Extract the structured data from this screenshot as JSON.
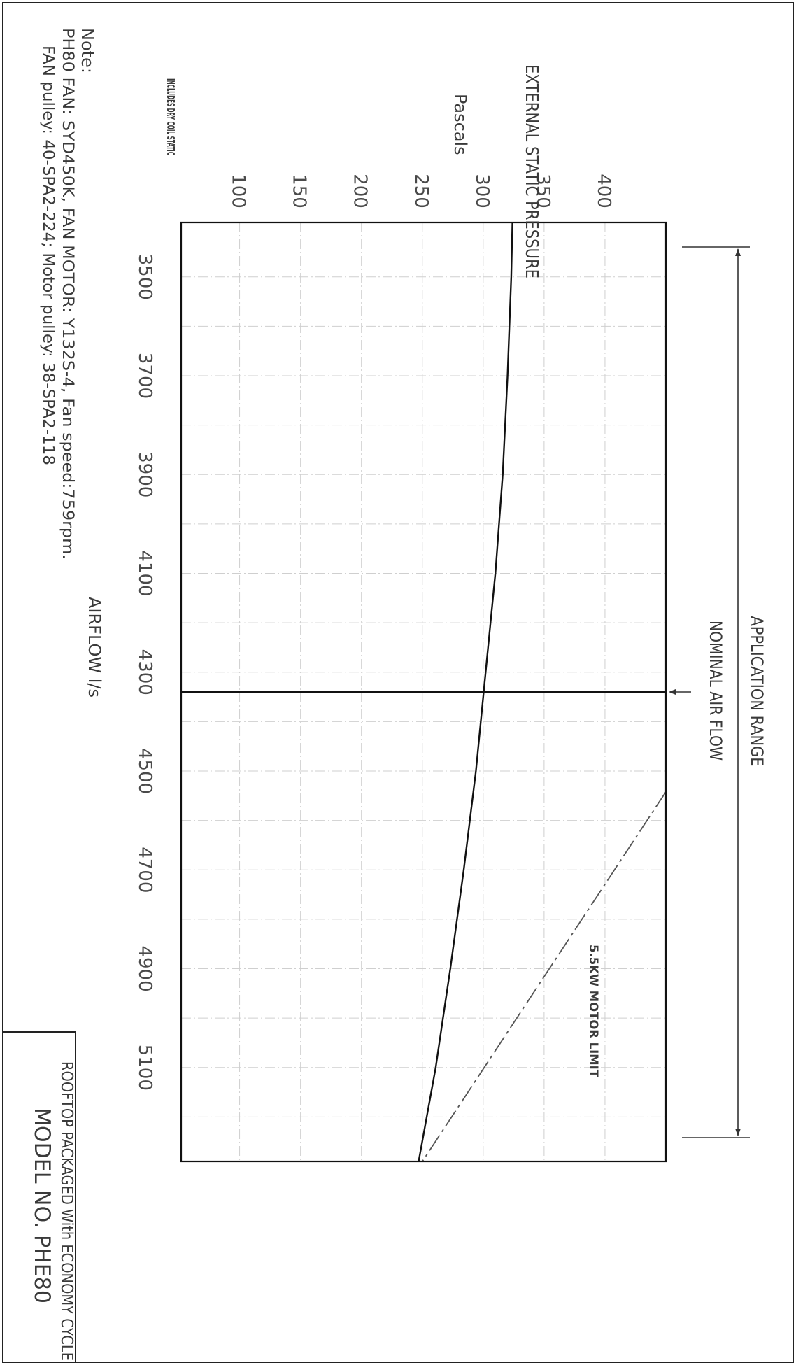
{
  "notes": {
    "heading": "Note:",
    "line1": "PH80 FAN: SYD450K, FAN MOTOR: Y132S-4, Fan speed:759rpm.",
    "line2": "FAN pulley: 40-SPA2-224; Motor pulley: 38-SPA2-118"
  },
  "title_block": {
    "line1": "ROOFTOP PACKAGED With ECONOMY CYCLE",
    "line2": "MODEL NO. PHE80"
  },
  "chart_data": {
    "type": "line",
    "pressure_axis": {
      "label": "EXTERNAL STATIC PRESSURE",
      "unit": "Pascals",
      "note": "INCLUDES DRY COIL STATIC",
      "ticks": [
        100,
        150,
        200,
        250,
        300,
        350,
        400
      ],
      "range": [
        52,
        450
      ]
    },
    "airflow_axis": {
      "label": "AIRFLOW l/s",
      "ticks": [
        3500,
        3700,
        3900,
        4100,
        4300,
        4500,
        4700,
        4900,
        5100
      ],
      "range": [
        3390,
        5290
      ]
    },
    "grid": true,
    "series": [
      {
        "name": "",
        "style": "solid",
        "color": "#111111",
        "points": [
          {
            "airflow": 3390,
            "pressure": 324
          },
          {
            "airflow": 3500,
            "pressure": 323
          },
          {
            "airflow": 3700,
            "pressure": 320
          },
          {
            "airflow": 3900,
            "pressure": 316
          },
          {
            "airflow": 4100,
            "pressure": 310
          },
          {
            "airflow": 4300,
            "pressure": 302
          },
          {
            "airflow": 4500,
            "pressure": 294
          },
          {
            "airflow": 4700,
            "pressure": 284
          },
          {
            "airflow": 4900,
            "pressure": 273
          },
          {
            "airflow": 5100,
            "pressure": 261
          },
          {
            "airflow": 5290,
            "pressure": 247
          }
        ]
      },
      {
        "name": "5.5KW MOTOR LIMIT",
        "style": "dash-dot",
        "color": "#555555",
        "points": [
          {
            "airflow": 4542,
            "pressure": 450
          },
          {
            "airflow": 5290,
            "pressure": 250
          }
        ]
      }
    ],
    "annotations": {
      "nominal_air_flow": {
        "label": "NOMINAL AIR FLOW",
        "airflow": 4300
      },
      "application_range": {
        "label": "APPLICATION RANGE",
        "from": 3390,
        "to": 5290
      }
    }
  }
}
